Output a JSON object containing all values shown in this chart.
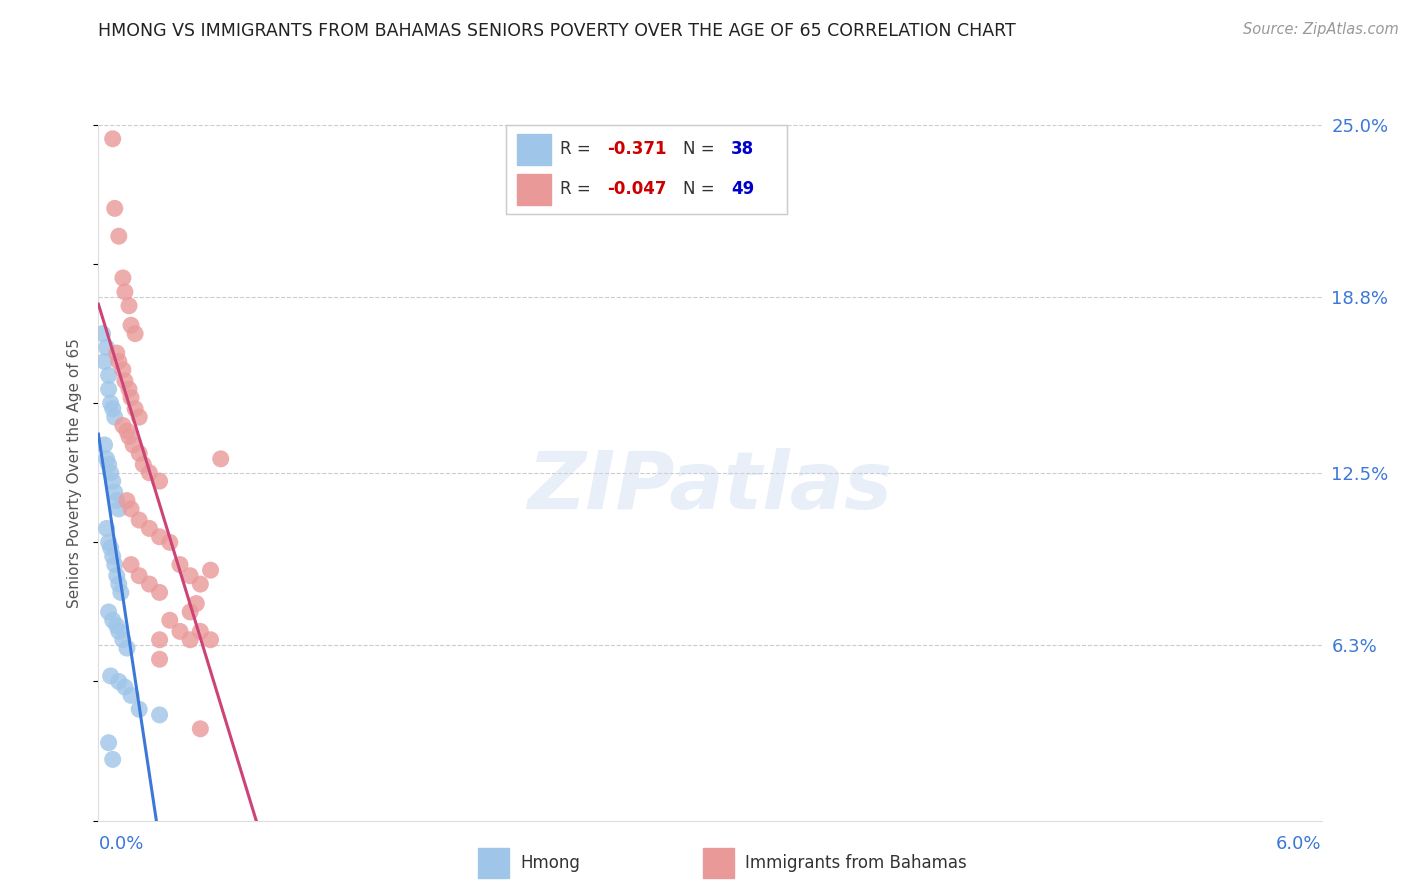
{
  "title": "HMONG VS IMMIGRANTS FROM BAHAMAS SENIORS POVERTY OVER THE AGE OF 65 CORRELATION CHART",
  "source": "Source: ZipAtlas.com",
  "ylabel": "Seniors Poverty Over the Age of 65",
  "ytick_vals": [
    0.0,
    0.063,
    0.125,
    0.188,
    0.25
  ],
  "ytick_labels": [
    "",
    "6.3%",
    "12.5%",
    "18.8%",
    "25.0%"
  ],
  "xmin": 0.0,
  "xmax": 0.06,
  "ymin": 0.0,
  "ymax": 0.25,
  "hmong_R": -0.371,
  "hmong_N": 38,
  "bahamas_R": -0.047,
  "bahamas_N": 49,
  "hmong_color": "#9fc5e8",
  "bahamas_color": "#ea9999",
  "hmong_line_color": "#3c78d8",
  "bahamas_line_color": "#cc4477",
  "watermark": "ZIPatlas",
  "hmong_x": [
    0.0002,
    0.0003,
    0.0004,
    0.0005,
    0.0005,
    0.0006,
    0.0007,
    0.0008,
    0.0003,
    0.0004,
    0.0005,
    0.0006,
    0.0007,
    0.0008,
    0.0009,
    0.001,
    0.0004,
    0.0005,
    0.0006,
    0.0007,
    0.0008,
    0.0009,
    0.001,
    0.0011,
    0.0005,
    0.0007,
    0.0009,
    0.001,
    0.0012,
    0.0014,
    0.0006,
    0.001,
    0.0013,
    0.0016,
    0.002,
    0.003,
    0.0005,
    0.0007
  ],
  "hmong_y": [
    0.175,
    0.165,
    0.17,
    0.16,
    0.155,
    0.15,
    0.148,
    0.145,
    0.135,
    0.13,
    0.128,
    0.125,
    0.122,
    0.118,
    0.115,
    0.112,
    0.105,
    0.1,
    0.098,
    0.095,
    0.092,
    0.088,
    0.085,
    0.082,
    0.075,
    0.072,
    0.07,
    0.068,
    0.065,
    0.062,
    0.052,
    0.05,
    0.048,
    0.045,
    0.04,
    0.038,
    0.028,
    0.022
  ],
  "bahamas_x": [
    0.0007,
    0.0008,
    0.001,
    0.0012,
    0.0013,
    0.0015,
    0.0016,
    0.0018,
    0.0009,
    0.001,
    0.0012,
    0.0013,
    0.0015,
    0.0016,
    0.0018,
    0.002,
    0.0012,
    0.0014,
    0.0015,
    0.0017,
    0.002,
    0.0022,
    0.0025,
    0.003,
    0.0014,
    0.0016,
    0.002,
    0.0025,
    0.003,
    0.0035,
    0.0016,
    0.002,
    0.0025,
    0.003,
    0.004,
    0.0045,
    0.005,
    0.0055,
    0.003,
    0.0035,
    0.004,
    0.005,
    0.0055,
    0.006,
    0.0045,
    0.0048,
    0.003,
    0.0045,
    0.005
  ],
  "bahamas_y": [
    0.245,
    0.22,
    0.21,
    0.195,
    0.19,
    0.185,
    0.178,
    0.175,
    0.168,
    0.165,
    0.162,
    0.158,
    0.155,
    0.152,
    0.148,
    0.145,
    0.142,
    0.14,
    0.138,
    0.135,
    0.132,
    0.128,
    0.125,
    0.122,
    0.115,
    0.112,
    0.108,
    0.105,
    0.102,
    0.1,
    0.092,
    0.088,
    0.085,
    0.082,
    0.092,
    0.088,
    0.085,
    0.09,
    0.065,
    0.072,
    0.068,
    0.068,
    0.065,
    0.13,
    0.075,
    0.078,
    0.058,
    0.065,
    0.033
  ]
}
